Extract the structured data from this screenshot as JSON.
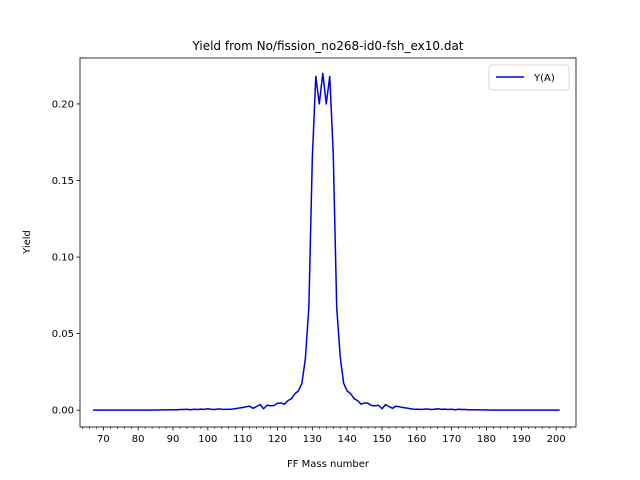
{
  "chart_data": {
    "type": "line",
    "title": "Yield from  No/fission_no268-id0-fsh_ex10.dat",
    "xlabel": "FF Mass number",
    "ylabel": "Yield",
    "xlim": [
      63.3,
      205.7
    ],
    "ylim": [
      -0.011,
      0.23
    ],
    "x_ticks": [
      70,
      80,
      90,
      100,
      110,
      120,
      130,
      140,
      150,
      160,
      170,
      180,
      190,
      200
    ],
    "x_tick_labels": [
      "70",
      "80",
      "90",
      "100",
      "110",
      "120",
      "130",
      "140",
      "150",
      "160",
      "170",
      "180",
      "190",
      "200"
    ],
    "y_ticks": [
      0.0,
      0.05,
      0.1,
      0.15,
      0.2
    ],
    "y_tick_labels": [
      "0.00",
      "0.05",
      "0.10",
      "0.15",
      "0.20"
    ],
    "x_minor_step": 2,
    "grid": false,
    "legend_position": "top-right",
    "colors": {
      "series": "#0000dd",
      "axes": "#000000",
      "background": "#ffffff"
    },
    "series": [
      {
        "name": "Y(A)",
        "x": [
          67,
          68,
          69,
          70,
          71,
          72,
          73,
          74,
          75,
          76,
          77,
          78,
          79,
          80,
          81,
          82,
          83,
          84,
          85,
          86,
          87,
          88,
          89,
          90,
          91,
          92,
          93,
          94,
          95,
          96,
          97,
          98,
          99,
          100,
          101,
          102,
          103,
          104,
          105,
          106,
          107,
          108,
          109,
          110,
          111,
          112,
          113,
          114,
          115,
          116,
          117,
          118,
          119,
          120,
          121,
          122,
          123,
          124,
          125,
          126,
          127,
          128,
          129,
          130,
          131,
          132,
          133,
          134,
          135,
          136,
          137,
          138,
          139,
          140,
          141,
          142,
          143,
          144,
          145,
          146,
          147,
          148,
          149,
          150,
          151,
          152,
          153,
          154,
          155,
          156,
          157,
          158,
          159,
          160,
          161,
          162,
          163,
          164,
          165,
          166,
          167,
          168,
          169,
          170,
          171,
          172,
          173,
          174,
          175,
          176,
          177,
          178,
          179,
          180,
          181,
          182,
          183,
          184,
          185,
          186,
          187,
          188,
          189,
          190,
          191,
          192,
          193,
          194,
          195,
          196,
          197,
          198,
          199,
          200,
          201
        ],
        "values": [
          0.0,
          0.0,
          0.0,
          0.0,
          0.0,
          0.0,
          0.0,
          0.0,
          0.0,
          0.0,
          0.0,
          0.0,
          0.0,
          0.0,
          0.0,
          0.0,
          0.0,
          0.0,
          0.0001,
          0.0001,
          0.0002,
          0.0002,
          0.0003,
          0.0003,
          0.0002,
          0.0004,
          0.0004,
          0.0006,
          0.0003,
          0.0006,
          0.0004,
          0.0007,
          0.0005,
          0.0009,
          0.0006,
          0.0004,
          0.0008,
          0.0006,
          0.0005,
          0.0006,
          0.0007,
          0.001,
          0.0014,
          0.0017,
          0.0022,
          0.0026,
          0.0012,
          0.0024,
          0.0036,
          0.0009,
          0.0032,
          0.0029,
          0.003,
          0.0045,
          0.0047,
          0.0039,
          0.0062,
          0.0075,
          0.0108,
          0.0125,
          0.0175,
          0.0335,
          0.067,
          0.165,
          0.218,
          0.2,
          0.22,
          0.2,
          0.218,
          0.168,
          0.067,
          0.035,
          0.0175,
          0.0125,
          0.0108,
          0.0075,
          0.0062,
          0.0039,
          0.0047,
          0.0045,
          0.003,
          0.0029,
          0.0032,
          0.0009,
          0.0036,
          0.0024,
          0.0012,
          0.0026,
          0.0022,
          0.0017,
          0.0014,
          0.001,
          0.0007,
          0.0006,
          0.0005,
          0.0006,
          0.0008,
          0.0004,
          0.0006,
          0.0009,
          0.0005,
          0.0007,
          0.0004,
          0.0006,
          0.0003,
          0.0006,
          0.0004,
          0.0004,
          0.0002,
          0.0003,
          0.0003,
          0.0002,
          0.0002,
          0.0001,
          0.0001,
          0.0,
          0.0,
          0.0,
          0.0,
          0.0,
          0.0,
          0.0,
          0.0,
          0.0,
          0.0,
          0.0,
          0.0,
          0.0,
          0.0,
          0.0,
          0.0,
          0.0,
          0.0,
          0.0,
          0.0
        ]
      }
    ]
  }
}
